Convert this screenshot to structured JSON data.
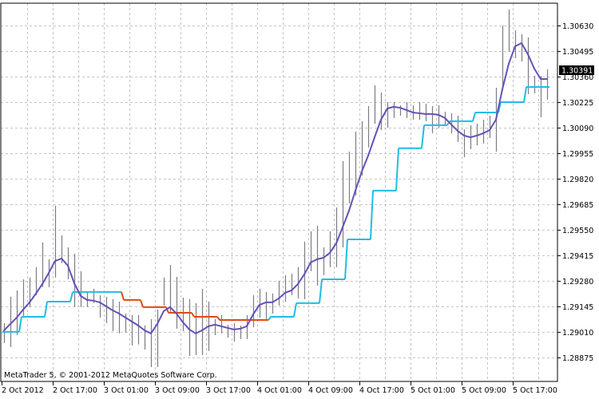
{
  "chart_data": {
    "type": "bar",
    "style": "ohlc-bars-high-low",
    "title": "",
    "ylim": [
      1.28748,
      1.30748
    ],
    "grid": true,
    "y_ticks": [
      "1.30630",
      "1.30495",
      "1.30360",
      "1.30225",
      "1.30090",
      "1.29955",
      "1.29820",
      "1.29685",
      "1.29550",
      "1.29415",
      "1.29280",
      "1.29145",
      "1.29010",
      "1.28875"
    ],
    "x_ticks": [
      "2 Oct 2012",
      "2 Oct 17:00",
      "3 Oct 01:00",
      "3 Oct 09:00",
      "3 Oct 17:00",
      "4 Oct 01:00",
      "4 Oct 09:00",
      "4 Oct 17:00",
      "5 Oct 01:00",
      "5 Oct 09:00",
      "5 Oct 17:00"
    ],
    "current_price": "1.30391",
    "copyright": "MetaTrader 5, © 2001-2012 MetaQuotes Software Corp.",
    "colors": {
      "bars": "#7c7c84",
      "moving_average": "#6650b8",
      "trend_up": "#1fbde6",
      "trend_down": "#e04a12",
      "grid": "#c4c4c4",
      "price_label_bg": "#000000"
    },
    "bars_high": [
      1.29056,
      1.29196,
      1.29229,
      1.29288,
      1.29297,
      1.29352,
      1.29483,
      1.29394,
      1.29677,
      1.2952,
      1.29457,
      1.29423,
      1.29331,
      1.29225,
      1.29238,
      1.29204,
      1.29196,
      1.29183,
      1.2917,
      1.29107,
      1.29099,
      1.29099,
      1.29044,
      1.29078,
      1.29128,
      1.29297,
      1.29364,
      1.29301,
      1.29191,
      1.29183,
      1.29162,
      1.29238,
      1.2917,
      1.29078,
      1.29099,
      1.29048,
      1.29056,
      1.29044,
      1.29099,
      1.29204,
      1.29238,
      1.29221,
      1.29213,
      1.2928,
      1.2931,
      1.29318,
      1.29352,
      1.29487,
      1.29542,
      1.29571,
      1.29457,
      1.29542,
      1.29668,
      1.29913,
      1.29963,
      1.30069,
      1.30124,
      1.30204,
      1.30314,
      1.30276,
      1.30225,
      1.30225,
      1.30208,
      1.30225,
      1.30208,
      1.30225,
      1.30216,
      1.30204,
      1.30208,
      1.30174,
      1.30166,
      1.30153,
      1.30081,
      1.30103,
      1.30111,
      1.30132,
      1.30153,
      1.30301,
      1.3063,
      1.30714,
      1.30605,
      1.30584,
      1.30567,
      1.30364,
      1.30364,
      1.30398
    ],
    "bars_low": [
      1.28951,
      1.2893,
      1.28993,
      1.29086,
      1.29141,
      1.29204,
      1.29246,
      1.29246,
      1.29297,
      1.29373,
      1.29288,
      1.29141,
      1.29141,
      1.29141,
      1.29162,
      1.29086,
      1.29056,
      1.29014,
      1.29002,
      1.29006,
      1.28938,
      1.28943,
      1.28917,
      1.28824,
      1.28824,
      1.29149,
      1.29111,
      1.29027,
      1.29014,
      1.28883,
      1.28888,
      1.28888,
      1.28909,
      1.28993,
      1.29002,
      1.2898,
      1.28959,
      1.28972,
      1.28972,
      1.29035,
      1.29086,
      1.29078,
      1.29107,
      1.29149,
      1.2917,
      1.29204,
      1.29187,
      1.29183,
      1.29331,
      1.29255,
      1.2931,
      1.29352,
      1.29352,
      1.29457,
      1.29689,
      1.29731,
      1.29837,
      1.29985,
      1.30111,
      1.30077,
      1.3009,
      1.30141,
      1.30153,
      1.30141,
      1.30132,
      1.30132,
      1.30124,
      1.3006,
      1.3009,
      1.30098,
      1.3006,
      1.30014,
      1.29934,
      1.29976,
      1.29997,
      1.30006,
      1.30035,
      1.29963,
      1.30301,
      1.30491,
      1.30457,
      1.3044,
      1.30267,
      1.30271,
      1.30145,
      1.30238
    ],
    "moving_average": [
      1.29018,
      1.29052,
      1.29086,
      1.29128,
      1.29166,
      1.29213,
      1.29263,
      1.29322,
      1.29385,
      1.29398,
      1.2936,
      1.29267,
      1.292,
      1.29179,
      1.29175,
      1.29166,
      1.29145,
      1.29124,
      1.29107,
      1.29086,
      1.29065,
      1.29044,
      1.29018,
      1.29002,
      1.29052,
      1.2912,
      1.29141,
      1.29107,
      1.29061,
      1.29023,
      1.29002,
      1.29018,
      1.2904,
      1.29048,
      1.2904,
      1.29031,
      1.29023,
      1.29027,
      1.2904,
      1.29103,
      1.29153,
      1.29166,
      1.29166,
      1.29187,
      1.29217,
      1.29229,
      1.29263,
      1.29314,
      1.29377,
      1.29394,
      1.29402,
      1.29428,
      1.29478,
      1.29563,
      1.29651,
      1.29757,
      1.29858,
      1.29942,
      1.30039,
      1.30132,
      1.30191,
      1.302,
      1.30195,
      1.30183,
      1.3017,
      1.30166,
      1.30162,
      1.30162,
      1.30158,
      1.30141,
      1.30107,
      1.30073,
      1.30048,
      1.30039,
      1.30048,
      1.3006,
      1.30077,
      1.30132,
      1.30293,
      1.30428,
      1.3052,
      1.30537,
      1.30478,
      1.30402,
      1.30347,
      1.30347
    ],
    "trend_steps": [
      {
        "from": 0,
        "to": 2,
        "value": 1.2901,
        "direction": "up"
      },
      {
        "from": 3,
        "to": 6,
        "value": 1.2909,
        "direction": "up"
      },
      {
        "from": 7,
        "to": 10,
        "value": 1.2917,
        "direction": "up"
      },
      {
        "from": 11,
        "to": 18,
        "value": 1.29221,
        "direction": "up"
      },
      {
        "from": 19,
        "to": 21,
        "value": 1.29179,
        "direction": "down"
      },
      {
        "from": 22,
        "to": 25,
        "value": 1.29141,
        "direction": "down"
      },
      {
        "from": 26,
        "to": 29,
        "value": 1.29111,
        "direction": "down"
      },
      {
        "from": 30,
        "to": 33,
        "value": 1.2909,
        "direction": "down"
      },
      {
        "from": 34,
        "to": 41,
        "value": 1.29073,
        "direction": "down"
      },
      {
        "from": 42,
        "to": 45,
        "value": 1.2909,
        "direction": "up"
      },
      {
        "from": 46,
        "to": 49,
        "value": 1.29162,
        "direction": "up"
      },
      {
        "from": 50,
        "to": 53,
        "value": 1.29288,
        "direction": "up"
      },
      {
        "from": 54,
        "to": 57,
        "value": 1.29499,
        "direction": "up"
      },
      {
        "from": 58,
        "to": 61,
        "value": 1.29757,
        "direction": "up"
      },
      {
        "from": 62,
        "to": 65,
        "value": 1.29981,
        "direction": "up"
      },
      {
        "from": 66,
        "to": 69,
        "value": 1.30103,
        "direction": "up"
      },
      {
        "from": 70,
        "to": 73,
        "value": 1.30124,
        "direction": "up"
      },
      {
        "from": 74,
        "to": 77,
        "value": 1.3017,
        "direction": "up"
      },
      {
        "from": 78,
        "to": 81,
        "value": 1.30225,
        "direction": "up"
      },
      {
        "from": 82,
        "to": 85,
        "value": 1.30305,
        "direction": "up"
      }
    ]
  }
}
